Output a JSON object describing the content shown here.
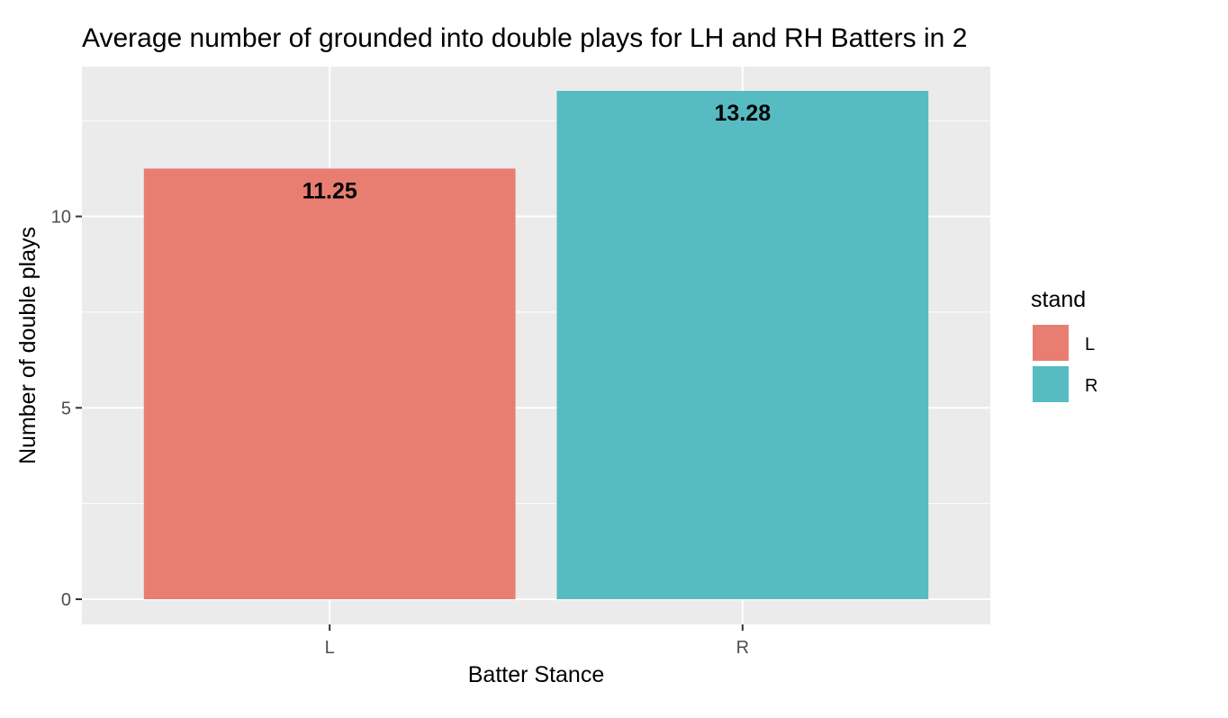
{
  "chart_data": {
    "type": "bar",
    "title": "Average number of grounded into double plays for LH and RH  Batters in 2",
    "xlabel": "Batter Stance",
    "ylabel": "Number of double plays",
    "categories": [
      "L",
      "R"
    ],
    "values": [
      11.25,
      13.28
    ],
    "data_labels": [
      "11.25",
      "13.28"
    ],
    "colors": [
      "#E87E72",
      "#56BCC2"
    ],
    "ylim": [
      -1.32,
      13.28
    ],
    "y_ticks": [
      0,
      5,
      10
    ],
    "y_tick_labels": [
      "0",
      "5",
      "10"
    ],
    "grid": true,
    "legend": {
      "title": "stand",
      "position": "right",
      "entries": [
        "L",
        "R"
      ]
    }
  }
}
